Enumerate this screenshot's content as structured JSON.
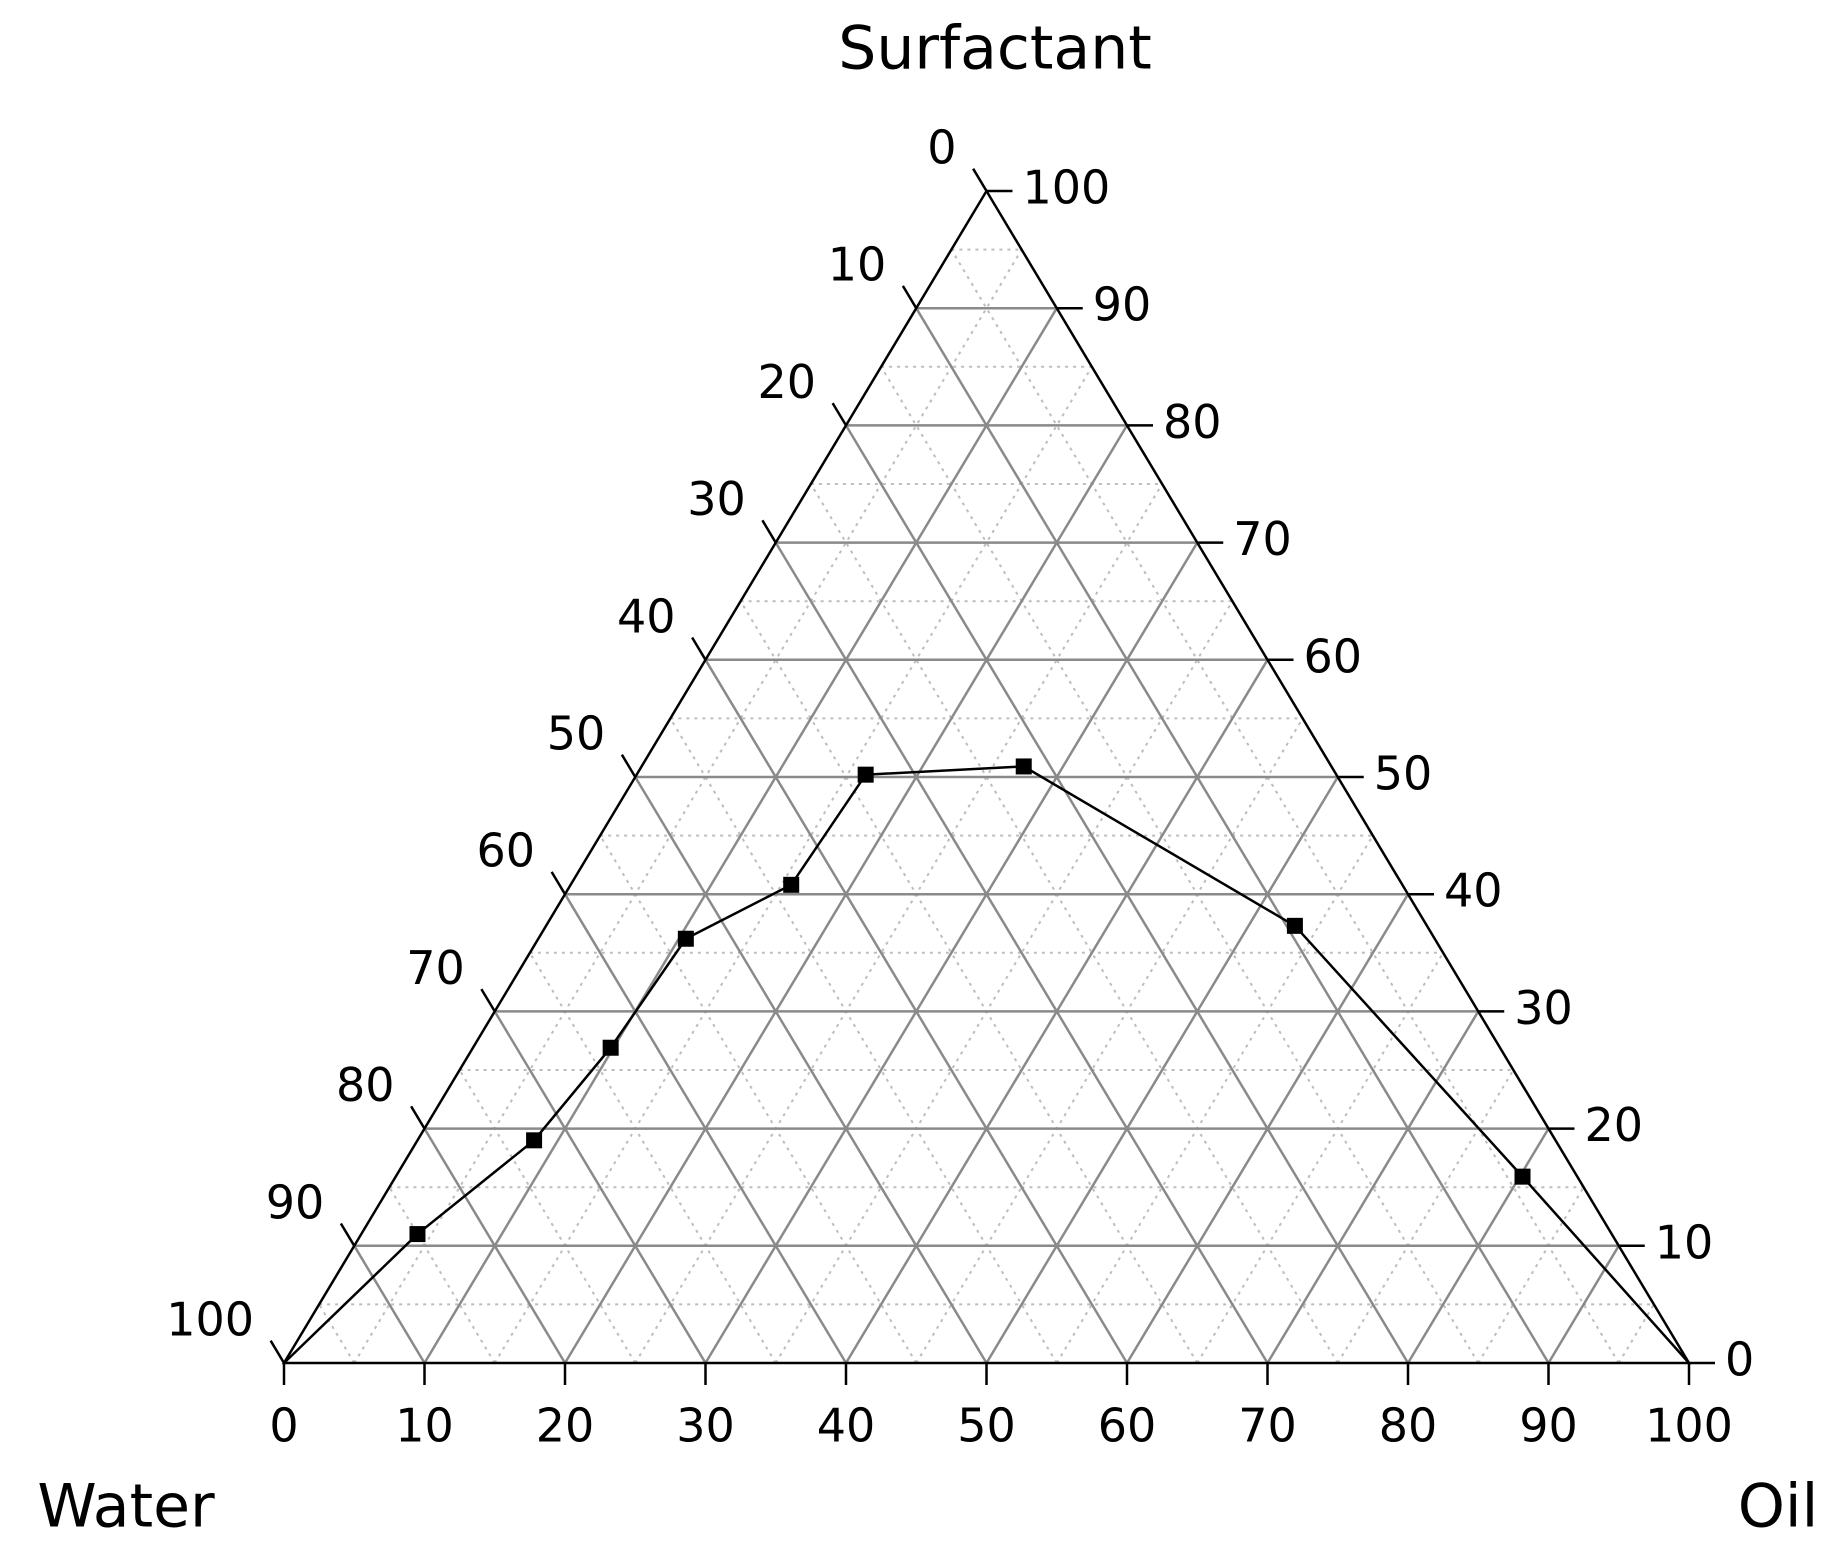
{
  "chart_data": {
    "type": "ternary",
    "bottom_axis": {
      "title": "Oil",
      "ticks": [
        0,
        10,
        20,
        30,
        40,
        50,
        60,
        70,
        80,
        90,
        100
      ]
    },
    "right_axis": {
      "title": "Surfactant",
      "ticks": [
        0,
        10,
        20,
        30,
        40,
        50,
        60,
        70,
        80,
        90,
        100
      ]
    },
    "left_axis": {
      "title": "Water",
      "ticks": [
        0,
        10,
        20,
        30,
        40,
        50,
        60,
        70,
        80,
        90,
        100
      ]
    },
    "grid": true,
    "series": [
      {
        "color": "#000000",
        "oil": [
          0,
          4,
          8.3,
          9.8,
          10.5,
          15.7,
          16.3,
          27.2,
          53.3,
          80.2,
          100
        ],
        "surfactant": [
          0,
          11,
          19,
          26.9,
          36.2,
          40.8,
          50.2,
          50.9,
          37.3,
          15.9,
          0
        ],
        "water": [
          100,
          85,
          72.7,
          63.3,
          53.3,
          43.5,
          33.5,
          21.9,
          9.4,
          3.9,
          0
        ]
      }
    ]
  }
}
